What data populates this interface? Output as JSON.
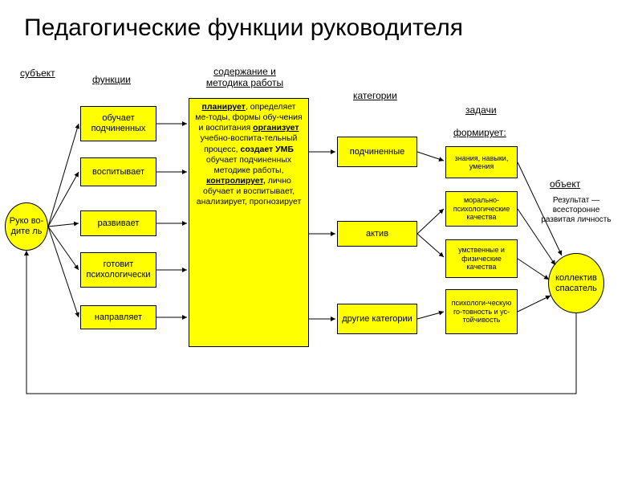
{
  "type": "flowchart",
  "title": "Педагогические функции руководителя",
  "background_color": "#ffffff",
  "node_fill": "#ffff00",
  "node_stroke": "#000000",
  "connector_color": "#000000",
  "title_fontsize": 30,
  "header_fontsize": 12,
  "box_fontsize": 11,
  "smallbox_fontsize": 9,
  "headers": {
    "subject": "субъект",
    "functions": "функции",
    "content": "содержание  и методика работы",
    "categories": "категории",
    "tasks": "задачи",
    "forms": "формирует:",
    "object": "объект"
  },
  "subject_circle": "Руко\nво-\nдите\nль",
  "functions_list": [
    "обучает подчиненных",
    "воспитывает",
    "развивает",
    "готовит психологически",
    "направляет"
  ],
  "content_box": {
    "lines": [
      {
        "t": "планирует",
        "style": "ub"
      },
      {
        "t": ", определяет ме-тоды, формы обу-чения и воспитания ",
        "style": ""
      },
      {
        "t": "организует",
        "style": "ub"
      },
      {
        "t": " учебно-воспита-тельный процесс, ",
        "style": ""
      },
      {
        "t": "создает УМБ",
        "style": "b"
      },
      {
        "t": " обучает подчиненных методике работы, ",
        "style": ""
      },
      {
        "t": "контролирует,",
        "style": "ub"
      },
      {
        "t": " лично обучает и воспитывает, анализирует, прогнозирует",
        "style": ""
      }
    ]
  },
  "categories_list": [
    "подчиненные",
    "актив",
    "другие категории"
  ],
  "tasks_list": [
    "знания, навыки, умения",
    "морально-психологические качества",
    "умственные и физические качества",
    "психологи-ческую го-товность и ус-тойчивость"
  ],
  "object_circle": "коллектив спасатель",
  "object_text": "Результат — всесторонне развитая личность"
}
